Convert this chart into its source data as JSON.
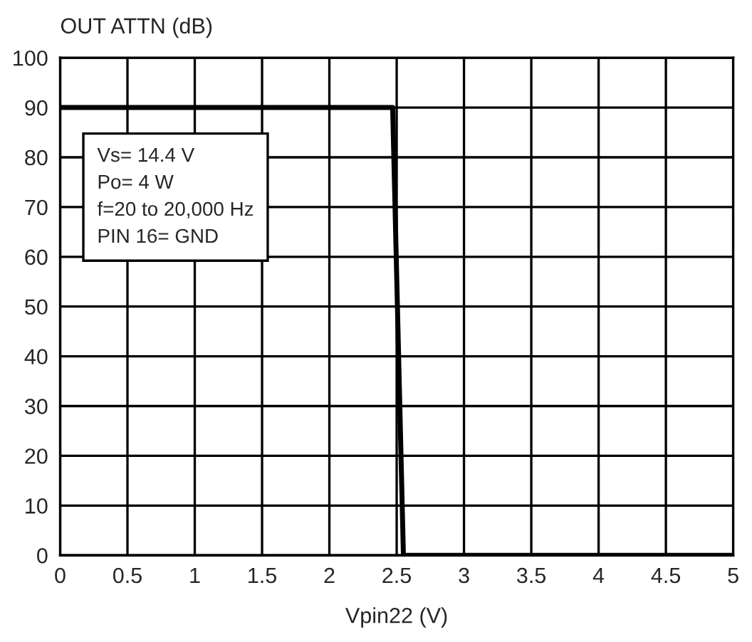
{
  "chart_data": {
    "type": "line",
    "xlabel": "Vpin22 (V)",
    "ylabel": "OUT ATTN (dB)",
    "x": [
      0,
      2.47,
      2.55,
      5
    ],
    "series": [
      {
        "color": "#000000",
        "values": [
          90,
          90,
          0,
          0
        ]
      }
    ],
    "xlim": [
      0,
      5
    ],
    "ylim": [
      0,
      100
    ],
    "xticks": [
      0,
      0.5,
      1,
      1.5,
      2,
      2.5,
      3,
      3.5,
      4,
      4.5,
      5
    ],
    "yticks": [
      0,
      10,
      20,
      30,
      40,
      50,
      60,
      70,
      80,
      90,
      100
    ],
    "grid": true,
    "marker": "none",
    "line_style": "solid",
    "legend": false,
    "annotations": [
      "Vs= 14.4 V\nPo= 4 W\nf=20 to 20,000 Hz\nPIN 16= GND"
    ]
  }
}
